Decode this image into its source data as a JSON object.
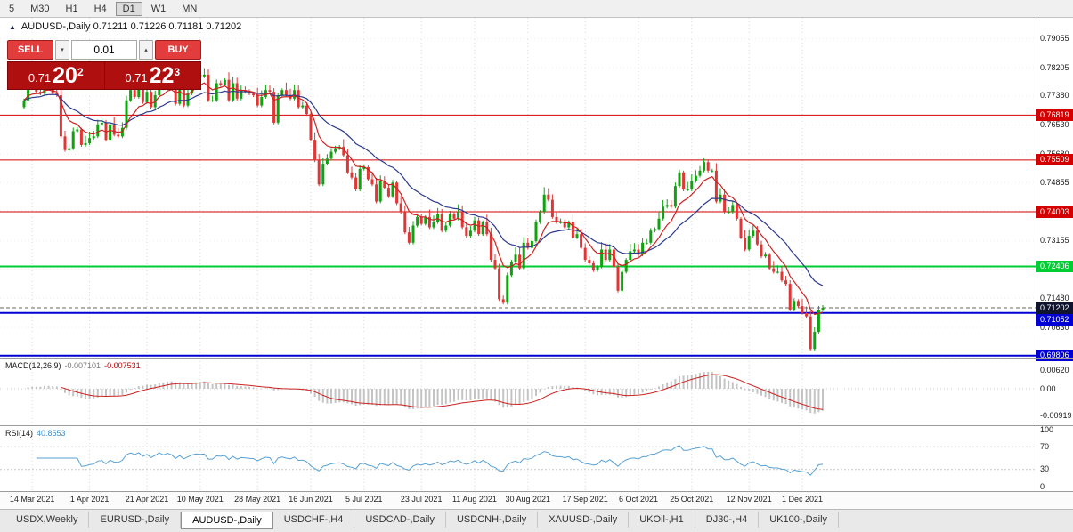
{
  "toolbar": {
    "timeframes": [
      "5",
      "M30",
      "H1",
      "H4",
      "D1",
      "W1",
      "MN"
    ],
    "active": "D1"
  },
  "header": {
    "symbol_line": "AUDUSD-,Daily 0.71211 0.71226 0.71181 0.71202"
  },
  "icons": {
    "collapse": "▲",
    "spinner_up": "▴",
    "spinner_down": "▾"
  },
  "trade": {
    "sell_label": "SELL",
    "buy_label": "BUY",
    "lot": "0.01",
    "bid": {
      "prefix": "0.71",
      "big": "20",
      "sup": "2"
    },
    "ask": {
      "prefix": "0.71",
      "big": "22",
      "sup": "3"
    }
  },
  "colors": {
    "bull": "#0fa30f",
    "bear": "#e23535",
    "ma_fast": "#cc2222",
    "ma_slow": "#2c3a8c",
    "macd_hist": "#c4c4c4",
    "macd_signal": "#cc2222",
    "rsi_line": "#56a0d3",
    "grid_v": "#d9d9d9",
    "grid_h": "#ededed",
    "level_red": "#d40000",
    "level_green": "#00cc33",
    "level_blue": "#0000d4",
    "current_price_box": "#10142e"
  },
  "indicator_labels": {
    "macd": {
      "label": "MACD(12,26,9)",
      "value1": "-0.007101",
      "value2": "-0.007531"
    },
    "rsi": {
      "label": "RSI(14)",
      "value": "40.8553"
    }
  },
  "tabs": {
    "active": "AUDUSD-,Daily",
    "items": [
      "USDX,Weekly",
      "EURUSD-,Daily",
      "AUDUSD-,Daily",
      "USDCHF-,H4",
      "USDCAD-,Daily",
      "USDCNH-,Daily",
      "XAUUSD-,Daily",
      "UKOil-,H1",
      "DJ30-,H4",
      "UK100-,Daily"
    ]
  },
  "chart_data": {
    "type": "candlestick",
    "symbol": "AUDUSD-",
    "timeframe": "Daily",
    "quote": {
      "open": 0.71211,
      "high": 0.71226,
      "low": 0.71181,
      "close": 0.71202
    },
    "closes": [
      0.7725,
      0.7785,
      0.776,
      0.775,
      0.7745,
      0.7785,
      0.776,
      0.7745,
      0.774,
      0.762,
      0.758,
      0.7585,
      0.7635,
      0.764,
      0.7595,
      0.76,
      0.7615,
      0.762,
      0.7655,
      0.766,
      0.761,
      0.7655,
      0.7625,
      0.762,
      0.7645,
      0.7725,
      0.7755,
      0.7735,
      0.7765,
      0.772,
      0.775,
      0.7705,
      0.774,
      0.779,
      0.776,
      0.779,
      0.777,
      0.7715,
      0.7765,
      0.771,
      0.7745,
      0.778,
      0.78,
      0.7795,
      0.78,
      0.7725,
      0.7725,
      0.7775,
      0.777,
      0.7785,
      0.7725,
      0.7775,
      0.773,
      0.7755,
      0.775,
      0.7745,
      0.774,
      0.771,
      0.7735,
      0.7755,
      0.775,
      0.766,
      0.774,
      0.7755,
      0.774,
      0.773,
      0.7755,
      0.7705,
      0.771,
      0.7685,
      0.761,
      0.755,
      0.748,
      0.754,
      0.7555,
      0.7575,
      0.7585,
      0.759,
      0.7565,
      0.7515,
      0.75,
      0.7465,
      0.7525,
      0.753,
      0.7495,
      0.748,
      0.743,
      0.749,
      0.747,
      0.7445,
      0.7485,
      0.7425,
      0.74,
      0.734,
      0.731,
      0.736,
      0.7385,
      0.7365,
      0.7385,
      0.7355,
      0.737,
      0.7395,
      0.7345,
      0.736,
      0.7395,
      0.738,
      0.74,
      0.7355,
      0.733,
      0.7345,
      0.7375,
      0.7335,
      0.737,
      0.7335,
      0.726,
      0.7235,
      0.7145,
      0.7135,
      0.7215,
      0.7255,
      0.7275,
      0.7235,
      0.731,
      0.7295,
      0.7315,
      0.737,
      0.74,
      0.745,
      0.7435,
      0.7385,
      0.737,
      0.737,
      0.7355,
      0.737,
      0.7325,
      0.7335,
      0.7295,
      0.726,
      0.725,
      0.723,
      0.724,
      0.729,
      0.726,
      0.729,
      0.724,
      0.717,
      0.7225,
      0.726,
      0.7285,
      0.729,
      0.7275,
      0.731,
      0.731,
      0.7345,
      0.735,
      0.738,
      0.7415,
      0.742,
      0.7415,
      0.7475,
      0.7515,
      0.7465,
      0.7465,
      0.749,
      0.7505,
      0.752,
      0.7545,
      0.752,
      0.752,
      0.743,
      0.745,
      0.74,
      0.74,
      0.742,
      0.738,
      0.7325,
      0.729,
      0.733,
      0.7345,
      0.7305,
      0.727,
      0.7275,
      0.7235,
      0.7225,
      0.7225,
      0.72,
      0.719,
      0.7115,
      0.714,
      0.7125,
      0.7105,
      0.7095,
      0.7,
      0.705,
      0.7115,
      0.71202
    ],
    "x_labels": [
      "14 Mar 2021",
      "1 Apr 2021",
      "21 Apr 2021",
      "10 May 2021",
      "28 May 2021",
      "16 Jun 2021",
      "5 Jul 2021",
      "23 Jul 2021",
      "11 Aug 2021",
      "30 Aug 2021",
      "17 Sep 2021",
      "6 Oct 2021",
      "25 Oct 2021",
      "12 Nov 2021",
      "1 Dec 2021"
    ],
    "x_label_indices": [
      2,
      16,
      30,
      43,
      57,
      70,
      83,
      97,
      110,
      123,
      137,
      150,
      163,
      177,
      190
    ],
    "axis": {
      "price_ticks": [
        0.79055,
        0.78205,
        0.7738,
        0.7653,
        0.7568,
        0.74855,
        0.7403,
        0.73155,
        0.7233,
        0.7148,
        0.7063,
        0.6978
      ],
      "macd_ticks": [
        {
          "v": 0.0062,
          "t": "0.00620"
        },
        {
          "v": 0,
          "t": "0.00"
        },
        {
          "v": -0.00919,
          "t": "-0.00919"
        }
      ],
      "rsi_ticks": [
        {
          "v": 100,
          "t": "100"
        },
        {
          "v": 70,
          "t": "70"
        },
        {
          "v": 30,
          "t": "30"
        },
        {
          "v": 0,
          "t": "0"
        }
      ]
    },
    "levels": [
      {
        "price": 0.76819,
        "label": "0.76819",
        "colorKey": "level_red",
        "width": 1
      },
      {
        "price": 0.75509,
        "label": "0.75509",
        "colorKey": "level_red",
        "width": 1
      },
      {
        "price": 0.74003,
        "label": "0.74003",
        "colorKey": "level_red",
        "width": 1
      },
      {
        "price": 0.72406,
        "label": "0.72406",
        "colorKey": "level_green",
        "width": 2
      },
      {
        "price": 0.71052,
        "label": "0.71052",
        "colorKey": "level_blue",
        "width": 2
      },
      {
        "price": 0.69806,
        "label": "0.69806",
        "colorKey": "level_blue",
        "width": 2
      }
    ],
    "current_price": {
      "value": 0.71202,
      "label": "0.71202"
    },
    "moving_averages": [
      {
        "period": 8,
        "colorKey": "ma_fast"
      },
      {
        "period": 21,
        "colorKey": "ma_slow"
      }
    ],
    "indicators": {
      "macd": {
        "params": "12,26,9",
        "value": -0.007101,
        "signal": -0.007531
      },
      "rsi": {
        "period": 14,
        "value": 40.8553,
        "levels": [
          70,
          30
        ]
      }
    }
  }
}
